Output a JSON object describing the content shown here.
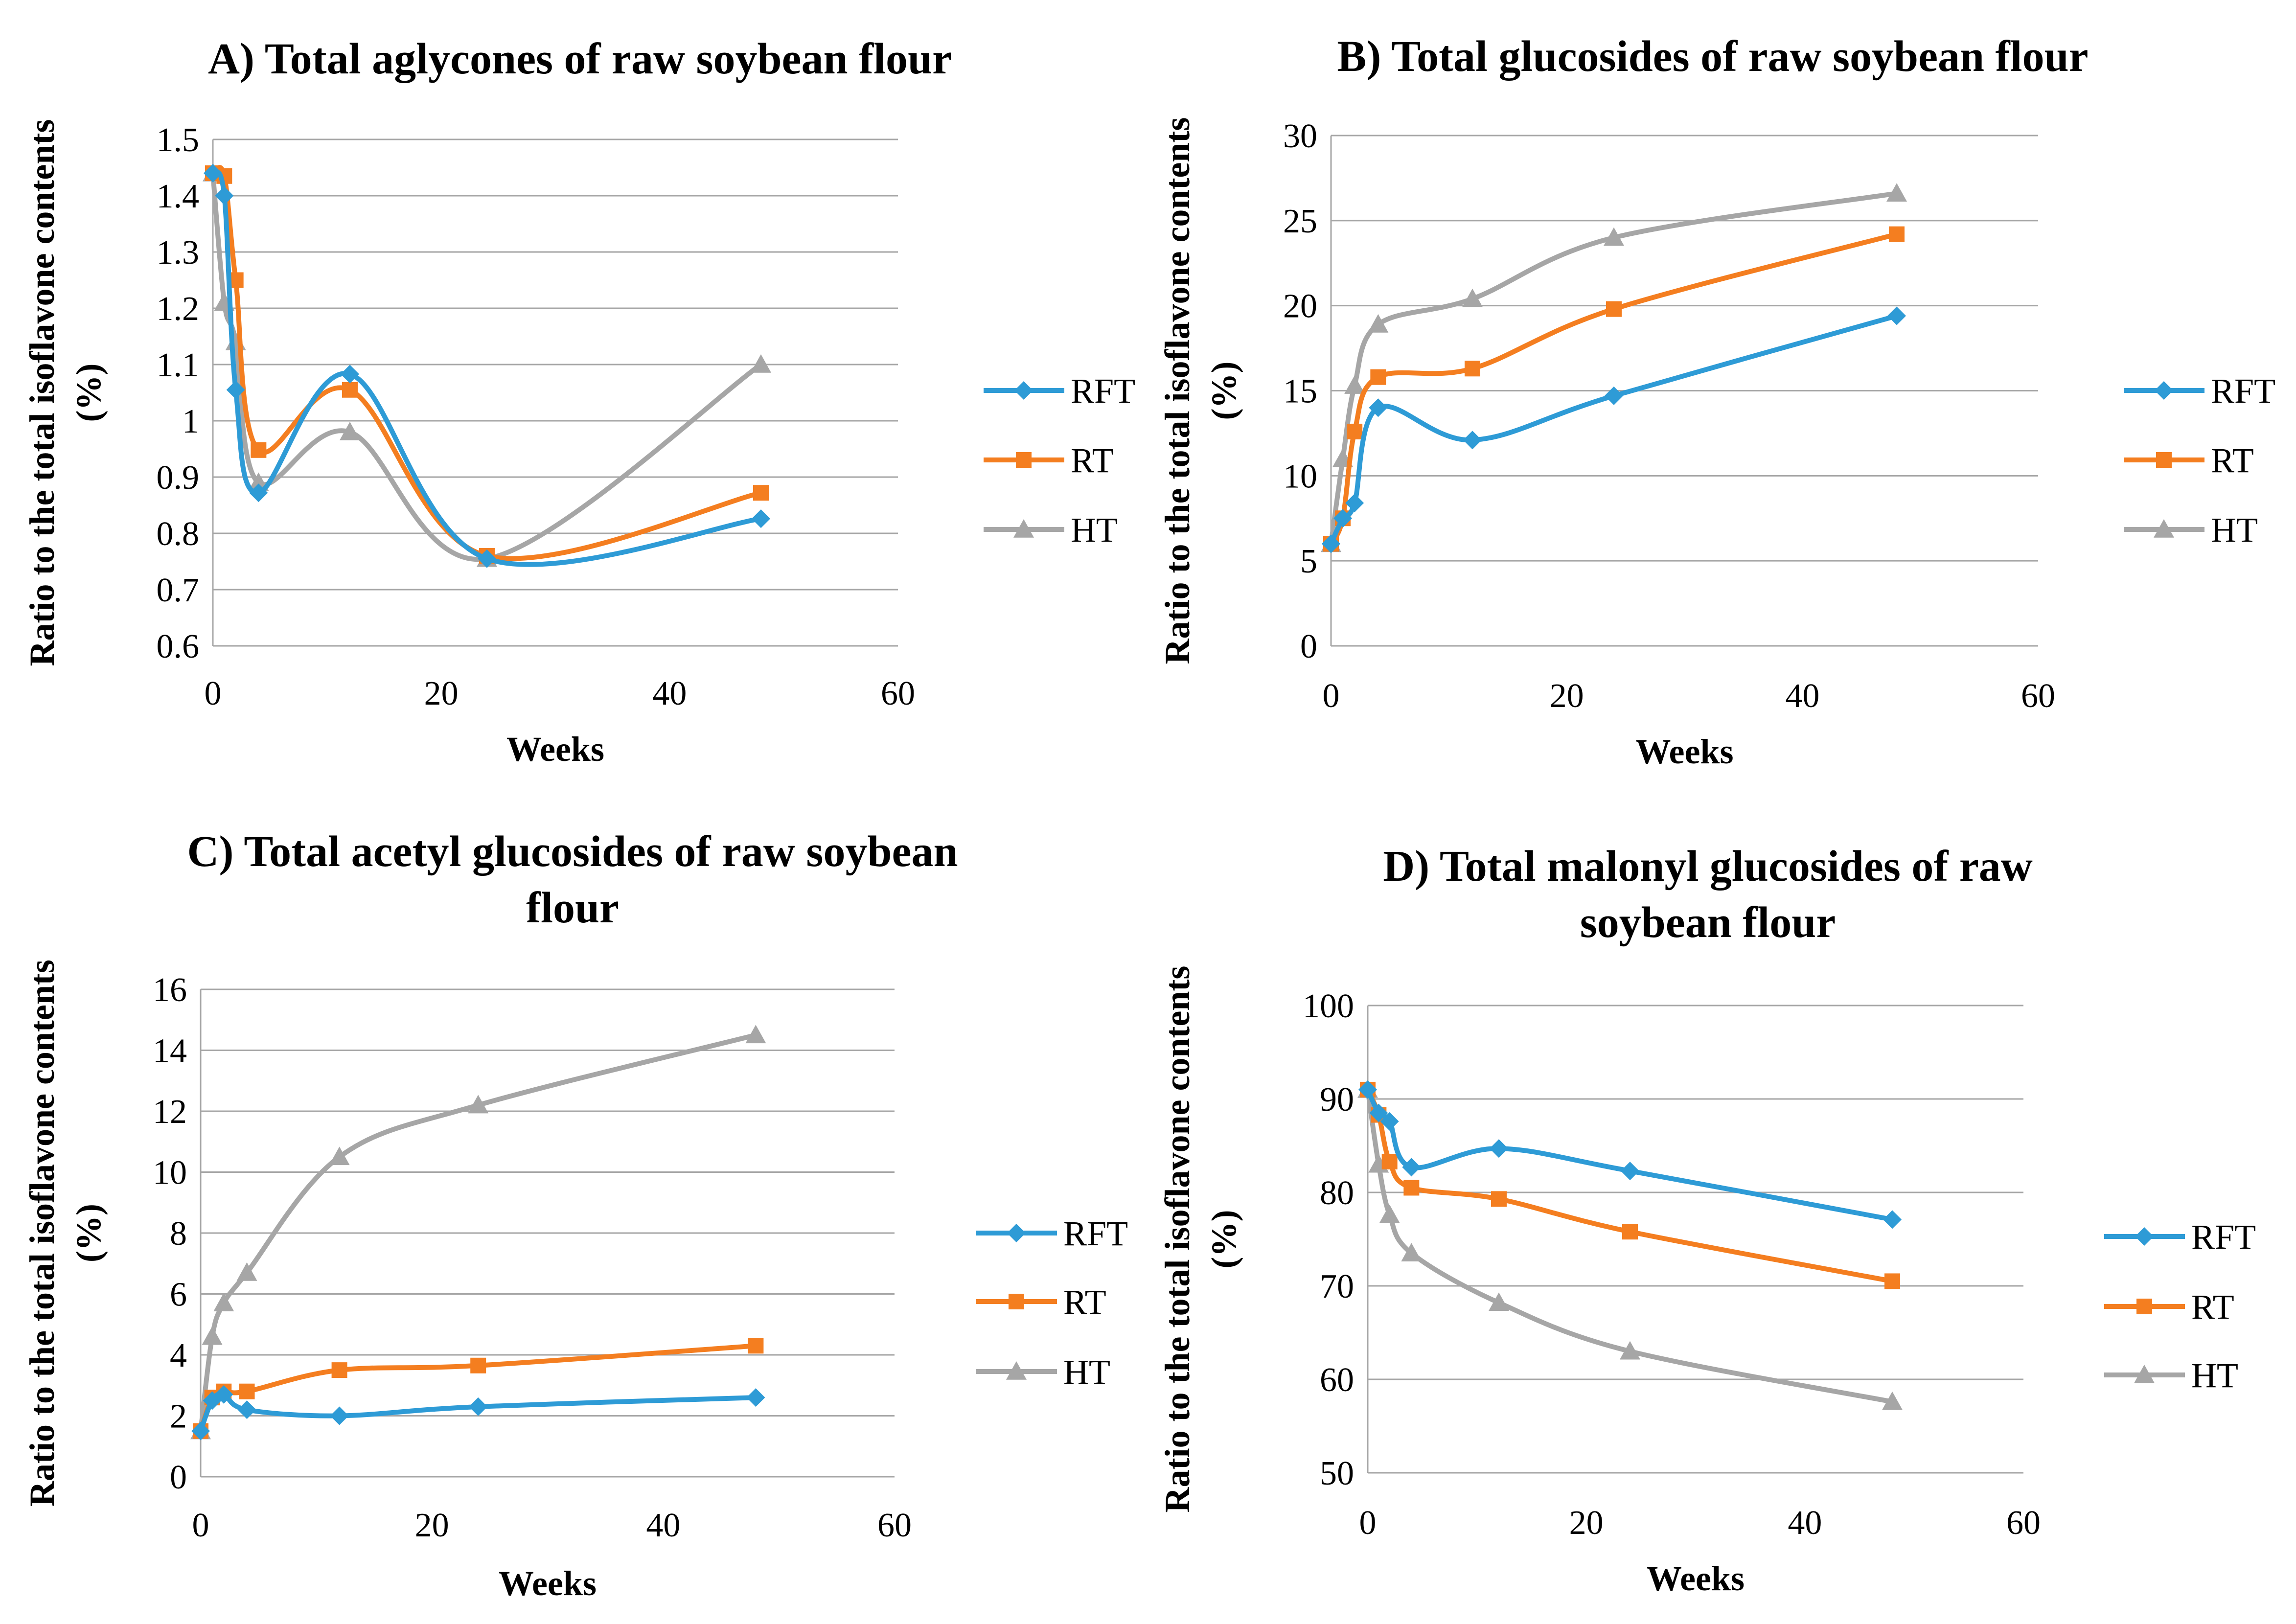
{
  "colors": {
    "RFT": "#2e9bd6",
    "RT": "#f47e20",
    "HT": "#a6a6a6"
  },
  "chart_data": [
    {
      "id": "A",
      "type": "line",
      "title": [
        "A) Total aglycones of raw soybean flour"
      ],
      "xlabel": "Weeks",
      "ylabel": [
        "Ratio to the total isoflavone contents",
        "(%)"
      ],
      "xlim": [
        0,
        60
      ],
      "ylim": [
        0.6,
        1.5
      ],
      "xticks": [
        0,
        20,
        40,
        60
      ],
      "yticks": [
        0.6,
        0.7,
        0.8,
        0.9,
        1,
        1.1,
        1.2,
        1.3,
        1.4,
        1.5
      ],
      "x": [
        0,
        1,
        2,
        4,
        12,
        24,
        48
      ],
      "series": [
        {
          "name": "RFT",
          "marker": "diamond",
          "values": [
            1.44,
            1.4,
            1.055,
            0.872,
            1.083,
            0.755,
            0.826
          ]
        },
        {
          "name": "RT",
          "marker": "square",
          "values": [
            1.44,
            1.435,
            1.25,
            0.948,
            1.055,
            0.76,
            0.872
          ]
        },
        {
          "name": "HT",
          "marker": "triangle",
          "values": [
            1.44,
            1.21,
            1.14,
            0.89,
            0.98,
            0.755,
            1.1
          ]
        }
      ]
    },
    {
      "id": "B",
      "type": "line",
      "title": [
        "B) Total glucosides of raw soybean flour"
      ],
      "xlabel": "Weeks",
      "ylabel": [
        "Ratio to the total isoflavone contents",
        "(%)"
      ],
      "xlim": [
        0,
        60
      ],
      "ylim": [
        0,
        30
      ],
      "xticks": [
        0,
        20,
        40,
        60
      ],
      "yticks": [
        0,
        5,
        10,
        15,
        20,
        25,
        30
      ],
      "x": [
        0,
        1,
        2,
        4,
        12,
        24,
        48
      ],
      "series": [
        {
          "name": "RFT",
          "marker": "diamond",
          "values": [
            6,
            7.5,
            8.4,
            14,
            12.1,
            14.7,
            19.4
          ]
        },
        {
          "name": "RT",
          "marker": "square",
          "values": [
            6,
            7.5,
            12.6,
            15.8,
            16.3,
            19.8,
            24.2
          ]
        },
        {
          "name": "HT",
          "marker": "triangle",
          "values": [
            6,
            11,
            15.3,
            18.9,
            20.4,
            24,
            26.6
          ]
        }
      ]
    },
    {
      "id": "C",
      "type": "line",
      "title": [
        "C) Total acetyl glucosides of raw soybean",
        "flour"
      ],
      "xlabel": "Weeks",
      "ylabel": [
        "Ratio to the total isoflavone contents",
        "(%)"
      ],
      "xlim": [
        0,
        60
      ],
      "ylim": [
        0,
        16
      ],
      "xticks": [
        0,
        20,
        40,
        60
      ],
      "yticks": [
        0,
        2,
        4,
        6,
        8,
        10,
        12,
        14,
        16
      ],
      "x": [
        0,
        1,
        2,
        4,
        12,
        24,
        48
      ],
      "series": [
        {
          "name": "RFT",
          "marker": "diamond",
          "values": [
            1.5,
            2.5,
            2.7,
            2.2,
            2,
            2.3,
            2.6
          ]
        },
        {
          "name": "RT",
          "marker": "square",
          "values": [
            1.5,
            2.6,
            2.8,
            2.8,
            3.5,
            3.65,
            4.3
          ]
        },
        {
          "name": "HT",
          "marker": "triangle",
          "values": [
            1.5,
            4.6,
            5.7,
            6.7,
            10.5,
            12.2,
            14.5
          ]
        }
      ]
    },
    {
      "id": "D",
      "type": "line",
      "title": [
        "D) Total malonyl glucosides of raw",
        "soybean flour"
      ],
      "xlabel": "Weeks",
      "ylabel": [
        "Ratio to the total isoflavone contents",
        "(%)"
      ],
      "xlim": [
        0,
        60
      ],
      "ylim": [
        50,
        100
      ],
      "xticks": [
        0,
        20,
        40,
        60
      ],
      "yticks": [
        50,
        60,
        70,
        80,
        90,
        100
      ],
      "x": [
        0,
        1,
        2,
        4,
        12,
        24,
        48
      ],
      "series": [
        {
          "name": "RFT",
          "marker": "diamond",
          "values": [
            91,
            88.5,
            87.6,
            82.7,
            84.7,
            82.3,
            77.1
          ]
        },
        {
          "name": "RT",
          "marker": "square",
          "values": [
            91,
            88.3,
            83.3,
            80.5,
            79.3,
            75.8,
            70.5
          ]
        },
        {
          "name": "HT",
          "marker": "triangle",
          "values": [
            91,
            83,
            77.6,
            73.5,
            68.2,
            63,
            57.6
          ]
        }
      ]
    }
  ]
}
